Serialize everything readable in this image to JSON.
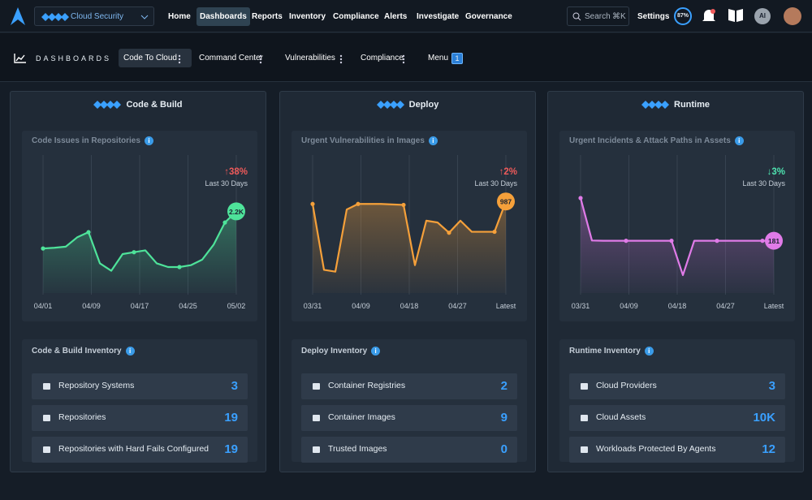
{
  "nav": {
    "product": "Cloud Security",
    "links": [
      "Home",
      "Dashboards",
      "Reports",
      "Inventory",
      "Compliance",
      "Alerts",
      "Investigate",
      "Governance"
    ],
    "search": "Search",
    "shortcut": "⌘K",
    "settings": "Settings",
    "score": "87%",
    "ai": "AI"
  },
  "subnav": {
    "title": "DASHBOARDS",
    "tabs": [
      "Code To Cloud",
      "Command Center",
      "Vulnerabilities",
      "Compliance"
    ],
    "menu": "Menu",
    "menu_badge": "1"
  },
  "panels": [
    {
      "title": "Code & Build",
      "chart": {
        "type": "line",
        "title": "Code Issues in Repositories",
        "change": "↑38%",
        "change_color": "#ef5a5a",
        "period": "Last 30 Days",
        "x_labels": [
          "04/01",
          "04/09",
          "04/17",
          "04/25",
          "05/02"
        ],
        "values": [
          1200,
          1220,
          1250,
          1500,
          1640,
          800,
          600,
          1050,
          1100,
          1150,
          800,
          700,
          700,
          750,
          900,
          1300,
          1900,
          2200
        ],
        "ylim": [
          0,
          3500
        ],
        "color": "#4ee39a",
        "end_label": "2.2K",
        "grid": true
      },
      "inventory": {
        "title": "Code & Build Inventory",
        "rows": [
          {
            "label": "Repository Systems",
            "value": "3"
          },
          {
            "label": "Repositories",
            "value": "19"
          },
          {
            "label": "Repositories with Hard Fails Configured",
            "value": "19"
          }
        ]
      }
    },
    {
      "title": "Deploy",
      "chart": {
        "type": "line",
        "title": "Urgent Vulnerabilities in Images",
        "change": "↑2%",
        "change_color": "#ef5a5a",
        "period": "Last 30 Days",
        "x_labels": [
          "03/31",
          "04/09",
          "04/18",
          "04/27",
          "Latest"
        ],
        "values": [
          960,
          250,
          230,
          900,
          960,
          960,
          960,
          955,
          950,
          300,
          780,
          760,
          650,
          780,
          660,
          660,
          660,
          987
        ],
        "ylim": [
          0,
          1400
        ],
        "color": "#f5a03a",
        "end_label": "987",
        "grid": true
      },
      "inventory": {
        "title": "Deploy Inventory",
        "rows": [
          {
            "label": "Container Registries",
            "value": "2"
          },
          {
            "label": "Container Images",
            "value": "9"
          },
          {
            "label": "Trusted Images",
            "value": "0"
          }
        ]
      }
    },
    {
      "title": "Runtime",
      "chart": {
        "type": "line",
        "title": "Urgent Incidents & Attack Paths in Assets",
        "change": "↓3%",
        "change_color": "#4ee3b0",
        "period": "Last 30 Days",
        "x_labels": [
          "03/31",
          "04/09",
          "04/18",
          "04/27",
          "Latest"
        ],
        "values": [
          329,
          182,
          181,
          181,
          181,
          181,
          181,
          181,
          181,
          62,
          181,
          181,
          181,
          181,
          181,
          181,
          181,
          181
        ],
        "ylim": [
          0,
          450
        ],
        "color": "#e07be8",
        "end_label": "181",
        "grid": true
      },
      "inventory": {
        "title": "Runtime Inventory",
        "rows": [
          {
            "label": "Cloud Providers",
            "value": "3"
          },
          {
            "label": "Cloud Assets",
            "value": "10K"
          },
          {
            "label": "Workloads Protected By Agents",
            "value": "12"
          }
        ]
      }
    }
  ]
}
